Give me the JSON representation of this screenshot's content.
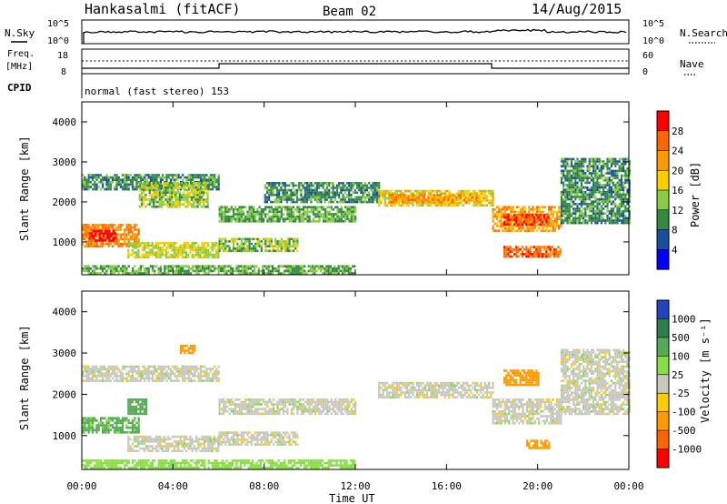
{
  "header": {
    "title": "Hankasalmi (fitACF)",
    "beam": "Beam 02",
    "date": "14/Aug/2015"
  },
  "top_panels": {
    "nsky_label": "N.Sky",
    "nsky_ticks": [
      "10^5",
      "10^0"
    ],
    "nsearch_label": "N.Search",
    "nsearch_ticks": [
      "10^5",
      "10^0"
    ],
    "freq_label_line1": "Freq.",
    "freq_label_line2": "[MHz]",
    "freq_ticks": [
      "18",
      "8"
    ],
    "nave_label": "Nave",
    "nave_ticks": [
      "60",
      "0"
    ],
    "cpid_label": "CPID",
    "cpid_text": "normal (fast stereo) 153"
  },
  "colorbars": {
    "power": {
      "label": "Power [dB]",
      "ticks": [
        "28",
        "24",
        "20",
        "16",
        "12",
        "8",
        "4"
      ],
      "colors": [
        "#ff0000",
        "#ff6600",
        "#ff9900",
        "#ffcc00",
        "#88cc44",
        "#338844",
        "#1a4fa0",
        "#0000ff"
      ]
    },
    "velocity": {
      "label": "Velocity [m s⁻¹]",
      "ticks": [
        "1000",
        "500",
        "100",
        "25",
        "-25",
        "-100",
        "-500",
        "-1000"
      ],
      "colors": [
        "#2044c0",
        "#2e7d4f",
        "#55aa55",
        "#88dd44",
        "#c8c8c0",
        "#ffcc00",
        "#ff9900",
        "#ff6600",
        "#ff0000"
      ]
    }
  },
  "chart_data": [
    {
      "type": "heatmap",
      "title": "Power",
      "xlabel": "Time UT",
      "ylabel": "Slant Range [km]",
      "x_ticks": [
        "00:00",
        "04:00",
        "08:00",
        "12:00",
        "16:00",
        "20:00",
        "00:00"
      ],
      "y_ticks": [
        "4000",
        "3000",
        "2000",
        "1000"
      ],
      "ylim": [
        180,
        4500
      ],
      "clim": [
        0,
        30
      ],
      "regions": [
        {
          "t0": 0.0,
          "t1": 2.5,
          "r0": 900,
          "r1": 1450,
          "value": 22
        },
        {
          "t0": 0.3,
          "t1": 1.5,
          "r0": 1050,
          "r1": 1300,
          "value": 28
        },
        {
          "t0": 0.0,
          "t1": 6.0,
          "r0": 2300,
          "r1": 2700,
          "value": 8
        },
        {
          "t0": 2.0,
          "t1": 6.0,
          "r0": 600,
          "r1": 1000,
          "value": 14
        },
        {
          "t0": 2.5,
          "t1": 5.5,
          "r0": 1900,
          "r1": 2500,
          "value": 12
        },
        {
          "t0": 6.0,
          "t1": 12.0,
          "r0": 1500,
          "r1": 1900,
          "value": 10
        },
        {
          "t0": 6.0,
          "t1": 9.5,
          "r0": 800,
          "r1": 1100,
          "value": 12
        },
        {
          "t0": 8.0,
          "t1": 13.0,
          "r0": 2000,
          "r1": 2500,
          "value": 8
        },
        {
          "t0": 13.0,
          "t1": 18.0,
          "r0": 1900,
          "r1": 2300,
          "value": 16
        },
        {
          "t0": 13.5,
          "t1": 17.5,
          "r0": 2000,
          "r1": 2200,
          "value": 20
        },
        {
          "t0": 18.0,
          "t1": 21.0,
          "r0": 1300,
          "r1": 1900,
          "value": 20
        },
        {
          "t0": 18.5,
          "t1": 20.5,
          "r0": 1450,
          "r1": 1700,
          "value": 26
        },
        {
          "t0": 18.5,
          "t1": 21.0,
          "r0": 650,
          "r1": 900,
          "value": 24
        },
        {
          "t0": 21.0,
          "t1": 24.0,
          "r0": 1500,
          "r1": 3100,
          "value": 8
        },
        {
          "t0": 0.0,
          "t1": 12.0,
          "r0": 200,
          "r1": 420,
          "value": 10
        }
      ]
    },
    {
      "type": "heatmap",
      "title": "Velocity",
      "xlabel": "Time UT",
      "ylabel": "Slant Range [km]",
      "x_ticks": [
        "00:00",
        "04:00",
        "08:00",
        "12:00",
        "16:00",
        "20:00",
        "00:00"
      ],
      "y_ticks": [
        "4000",
        "3000",
        "2000",
        "1000"
      ],
      "ylim": [
        180,
        4500
      ],
      "clim": [
        -1000,
        1000
      ],
      "regions": [
        {
          "t0": 0.0,
          "t1": 2.5,
          "r0": 1100,
          "r1": 1450,
          "value": 120
        },
        {
          "t0": 2.0,
          "t1": 2.8,
          "r0": 1500,
          "r1": 1900,
          "value": 200
        },
        {
          "t0": 0.0,
          "t1": 6.0,
          "r0": 2300,
          "r1": 2700,
          "value": 0
        },
        {
          "t0": 2.0,
          "t1": 6.0,
          "r0": 600,
          "r1": 1000,
          "value": 0
        },
        {
          "t0": 6.0,
          "t1": 12.0,
          "r0": 1500,
          "r1": 1900,
          "value": 0
        },
        {
          "t0": 6.0,
          "t1": 9.5,
          "r0": 800,
          "r1": 1100,
          "value": 0
        },
        {
          "t0": 13.0,
          "t1": 18.0,
          "r0": 1900,
          "r1": 2300,
          "value": 0
        },
        {
          "t0": 18.0,
          "t1": 21.0,
          "r0": 1300,
          "r1": 1900,
          "value": 0
        },
        {
          "t0": 19.5,
          "t1": 20.5,
          "r0": 700,
          "r1": 900,
          "value": -300
        },
        {
          "t0": 18.5,
          "t1": 20.0,
          "r0": 2200,
          "r1": 2600,
          "value": -150
        },
        {
          "t0": 4.3,
          "t1": 5.0,
          "r0": 3000,
          "r1": 3200,
          "value": -200
        },
        {
          "t0": 21.0,
          "t1": 24.0,
          "r0": 1500,
          "r1": 3100,
          "value": 0
        },
        {
          "t0": 0.0,
          "t1": 12.0,
          "r0": 200,
          "r1": 420,
          "value": 60
        }
      ]
    }
  ]
}
